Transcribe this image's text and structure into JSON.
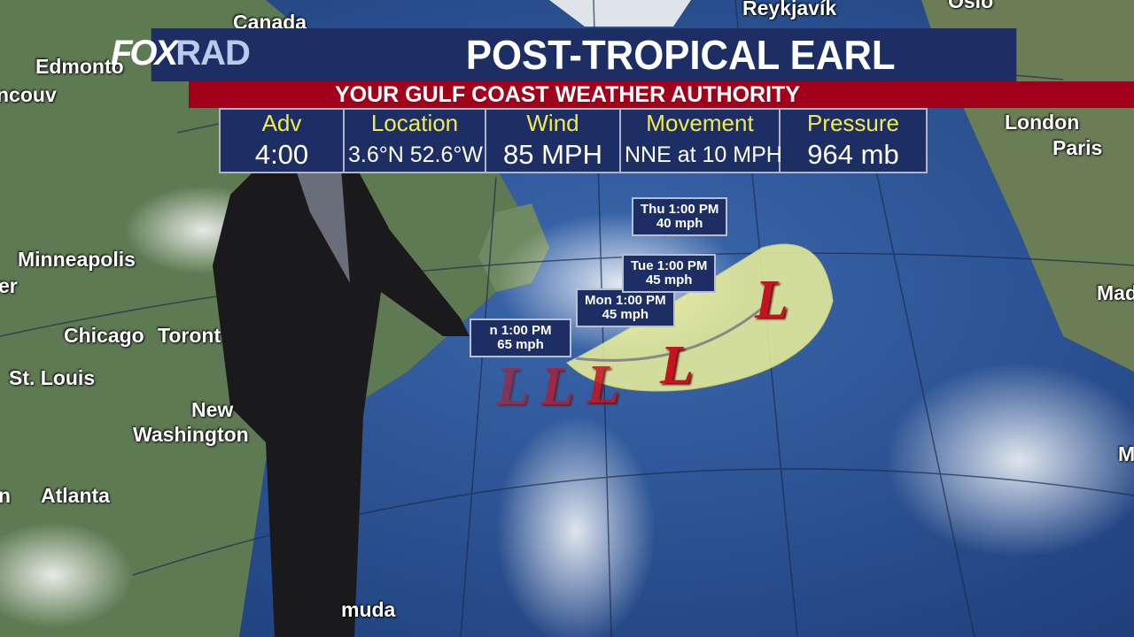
{
  "header": {
    "logo": "FOX",
    "logo_suffix": "RAD",
    "title": "POST-TROPICAL EARL",
    "tagline": "YOUR GULF COAST WEATHER AUTHORITY"
  },
  "info": [
    {
      "label": "Adv",
      "value": "4:00"
    },
    {
      "label": "Location",
      "value": "3.6°N  52.6°W"
    },
    {
      "label": "Wind",
      "value": "85 MPH"
    },
    {
      "label": "Movement",
      "value": "NNE at 10 MPH"
    },
    {
      "label": "Pressure",
      "value": "964 mb"
    }
  ],
  "forecast_points": [
    {
      "time": "n 1:00 PM",
      "wind": "65 mph"
    },
    {
      "time": "Mon 1:00 PM",
      "wind": "45 mph"
    },
    {
      "time": "Tue 1:00 PM",
      "wind": "45 mph"
    },
    {
      "time": "Thu 1:00 PM",
      "wind": "40 mph"
    }
  ],
  "low_symbol": "L",
  "cities": [
    "Canada",
    "Reykjavík",
    "Oslo",
    "Edmonto",
    "ncouv",
    "Minneapolis",
    "er",
    "Chicago",
    "Toront",
    "St. Louis",
    "New",
    "Washington",
    "Atlanta",
    "n",
    "muda",
    "London",
    "Paris",
    "Mad",
    "Ma"
  ],
  "colors": {
    "banner": "#1c2e63",
    "tagline": "#a0001a",
    "label": "#f1ec4a",
    "low": "#c4141e",
    "cone": "#eef29a"
  }
}
